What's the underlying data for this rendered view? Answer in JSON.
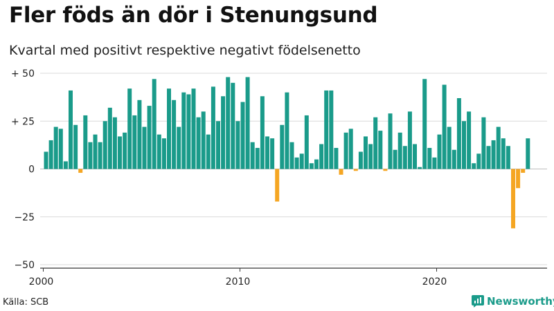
{
  "header": {
    "title": "Fler föds än dör i Stenungsund",
    "subtitle": "Kvartal med positivt respektive negativt födelsenetto"
  },
  "footer": {
    "source": "Källa: SCB",
    "brand": "Newsworthy"
  },
  "colors": {
    "positive": "#1a9b8a",
    "negative": "#f5a623",
    "grid": "#d9d9d9",
    "axis": "#333333",
    "brand": "#1a9b8a"
  },
  "chart_data": {
    "type": "bar",
    "title": "Fler föds än dör i Stenungsund",
    "subtitle": "Kvartal med positivt respektive negativt födelsenetto",
    "xlabel": "",
    "ylabel": "",
    "ylim": [
      -50,
      50
    ],
    "y_ticks": [
      50,
      25,
      0,
      -25,
      -50
    ],
    "y_tick_labels": [
      "+ 50",
      "+ 25",
      "0",
      "−25",
      "−50"
    ],
    "x_ticks": [
      2000,
      2010,
      2020
    ],
    "x_tick_labels": [
      "2000",
      "2010",
      "2020"
    ],
    "x_start_year": 2000,
    "periods_per_year": 4,
    "grid": "horizontal",
    "legend": "none",
    "values": [
      9,
      15,
      22,
      21,
      4,
      41,
      23,
      -2,
      28,
      14,
      18,
      14,
      25,
      32,
      27,
      17,
      19,
      42,
      28,
      36,
      22,
      33,
      47,
      18,
      16,
      42,
      36,
      22,
      40,
      39,
      42,
      27,
      30,
      18,
      43,
      25,
      38,
      48,
      45,
      25,
      35,
      48,
      14,
      11,
      38,
      17,
      16,
      -17,
      23,
      40,
      14,
      6,
      8,
      28,
      3,
      5,
      13,
      41,
      41,
      11,
      -3,
      19,
      21,
      -1,
      9,
      17,
      13,
      27,
      20,
      -1,
      29,
      10,
      19,
      12,
      30,
      13,
      1,
      47,
      11,
      6,
      18,
      44,
      22,
      10,
      37,
      25,
      30,
      3,
      8,
      27,
      12,
      15,
      22,
      16,
      12,
      -31,
      -10,
      -2,
      16
    ]
  }
}
